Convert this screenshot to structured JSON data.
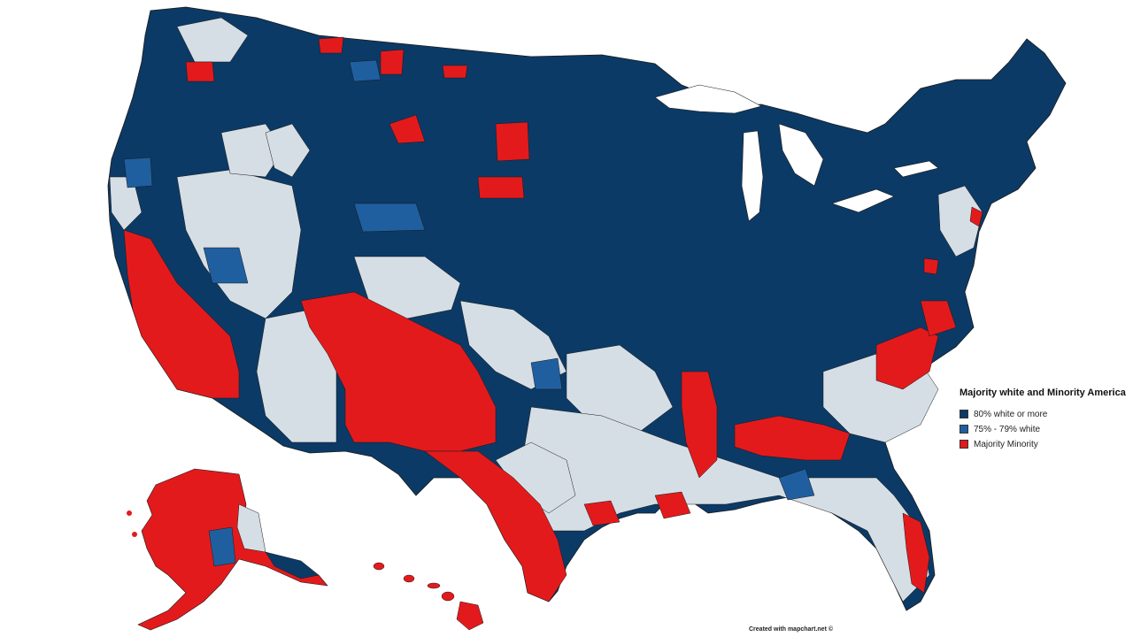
{
  "legend": {
    "title": "Majority white and Minority America",
    "items": [
      {
        "label": "80% white or more",
        "color": "#0b3a66"
      },
      {
        "label": "75% - 79% white",
        "color": "#1f5fa0"
      },
      {
        "label": "Majority Minority",
        "color": "#e31a1c"
      }
    ]
  },
  "credit": "Created with mapchart.net ©",
  "colors": {
    "white80": "#0b3a66",
    "white75": "#1f5fa0",
    "minority": "#e31a1c",
    "other": "#d6dee5",
    "border": "#1a1a1a"
  }
}
